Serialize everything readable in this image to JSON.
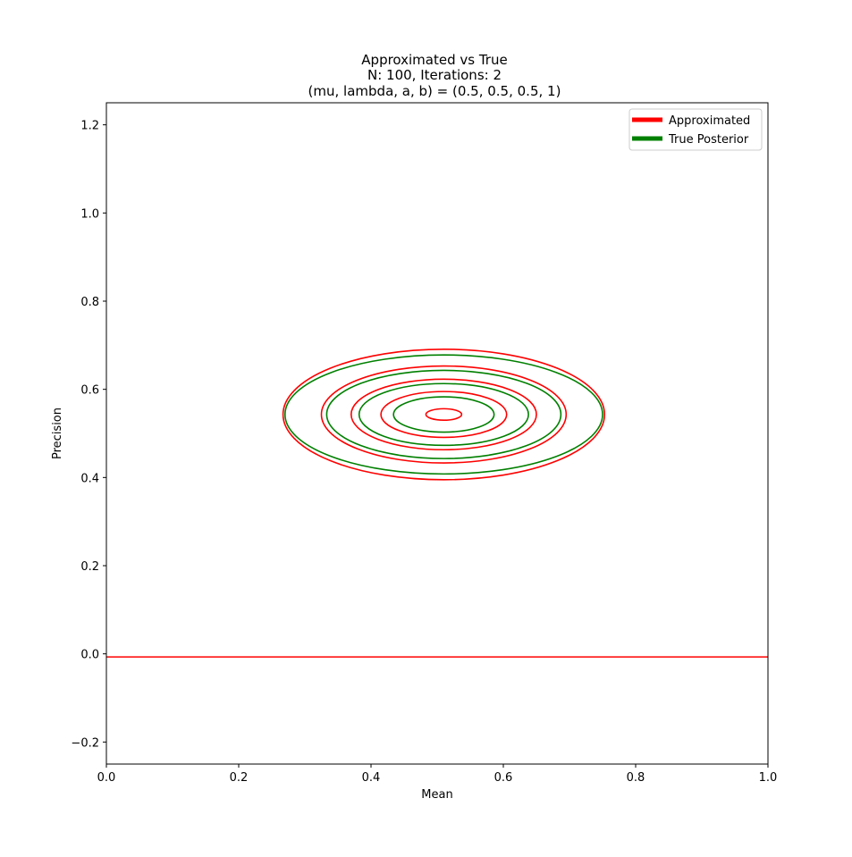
{
  "chart_data": {
    "type": "contour",
    "title_lines": [
      "Approximated vs True",
      "N: 100, Iterations: 2",
      "(mu, lambda, a, b) = (0.5, 0.5, 0.5, 1)"
    ],
    "xlabel": "Mean",
    "ylabel": "Precision",
    "xlim": [
      0.0,
      1.0
    ],
    "ylim": [
      -0.25,
      1.25
    ],
    "xticks": [
      0.0,
      0.2,
      0.4,
      0.6,
      0.8,
      1.0
    ],
    "xtick_labels": [
      "0.0",
      "0.2",
      "0.4",
      "0.6",
      "0.8",
      "1.0"
    ],
    "yticks": [
      -0.2,
      0.0,
      0.2,
      0.4,
      0.6,
      0.8,
      1.0,
      1.2
    ],
    "ytick_labels": [
      "−0.2",
      "0.0",
      "0.2",
      "0.4",
      "0.6",
      "0.8",
      "1.0",
      "1.2"
    ],
    "grid": false,
    "legend_position": "top-right",
    "series": [
      {
        "name": "Approximated",
        "color": "#ff0000",
        "contours": [
          {
            "cx": 0.51,
            "cy": 0.543,
            "rx": 0.027,
            "ry": 0.013
          },
          {
            "cx": 0.51,
            "cy": 0.543,
            "rx": 0.095,
            "ry": 0.052
          },
          {
            "cx": 0.51,
            "cy": 0.543,
            "rx": 0.14,
            "ry": 0.08
          },
          {
            "cx": 0.51,
            "cy": 0.543,
            "rx": 0.185,
            "ry": 0.11
          },
          {
            "cx": 0.51,
            "cy": 0.543,
            "rx": 0.243,
            "ry": 0.148
          }
        ],
        "hlines": [
          {
            "y": -0.007
          }
        ]
      },
      {
        "name": "True Posterior",
        "color": "#008000",
        "contours": [
          {
            "cx": 0.51,
            "cy": 0.543,
            "rx": 0.076,
            "ry": 0.04
          },
          {
            "cx": 0.51,
            "cy": 0.543,
            "rx": 0.128,
            "ry": 0.07
          },
          {
            "cx": 0.51,
            "cy": 0.543,
            "rx": 0.177,
            "ry": 0.1
          },
          {
            "cx": 0.51,
            "cy": 0.543,
            "rx": 0.24,
            "ry": 0.135
          }
        ]
      }
    ]
  }
}
